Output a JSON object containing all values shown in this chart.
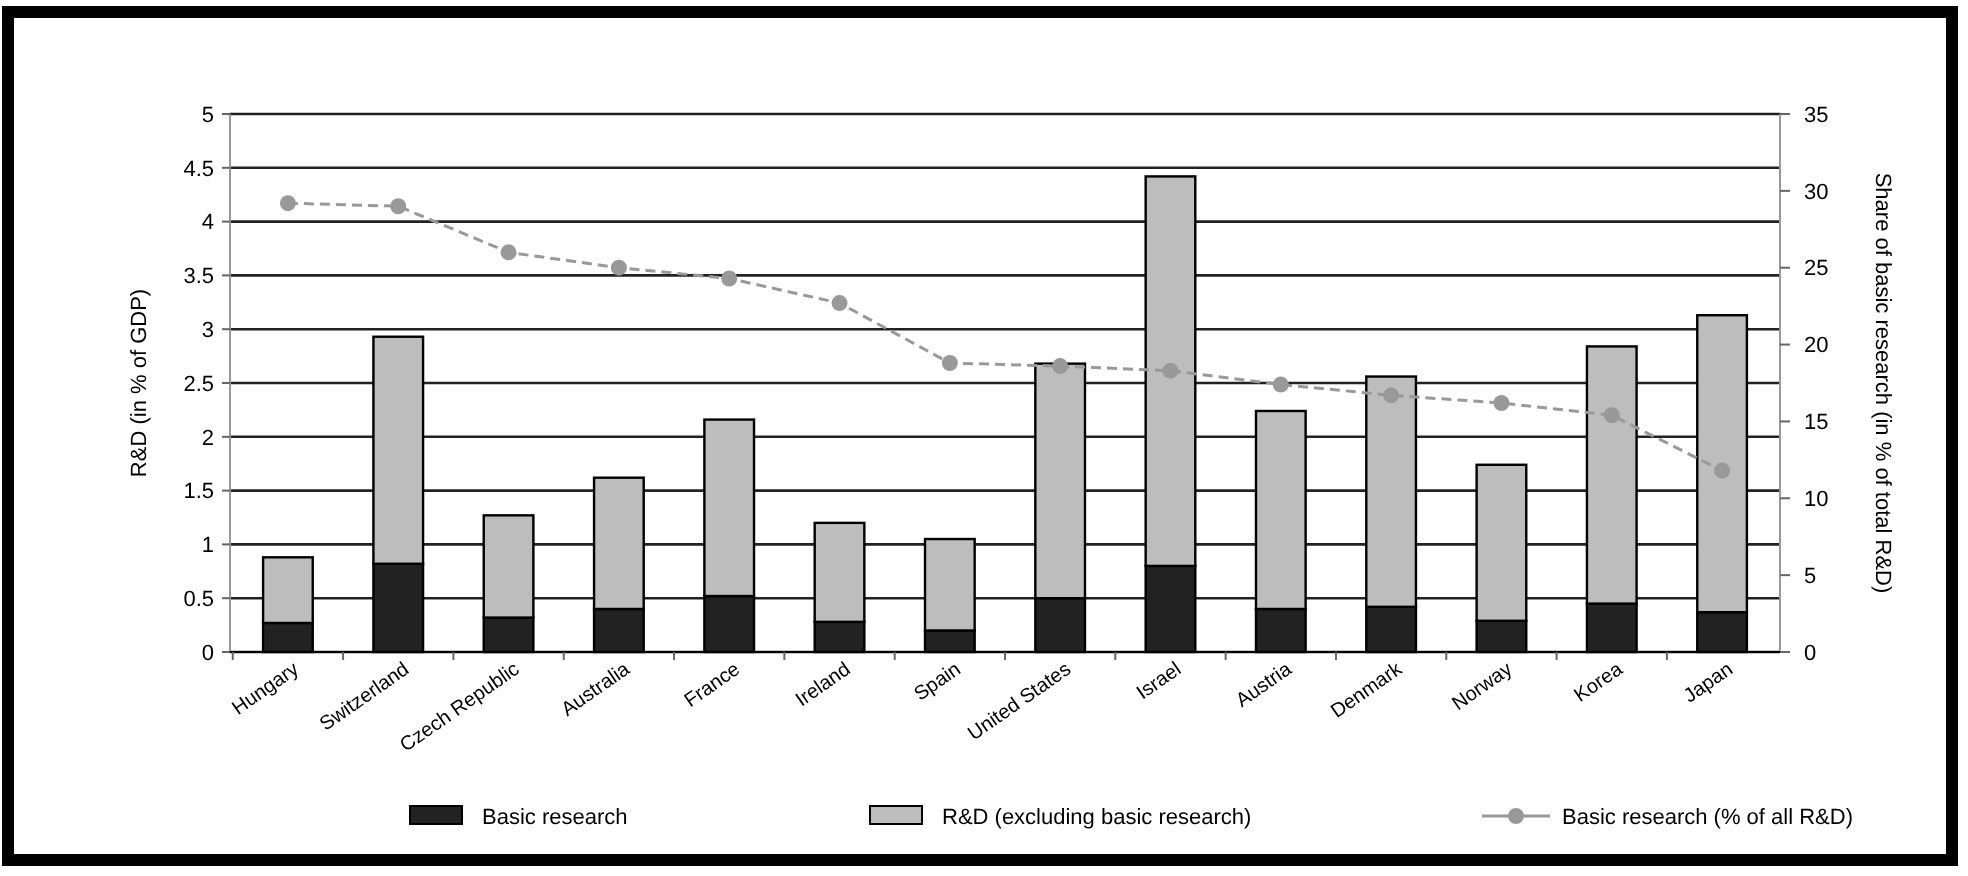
{
  "chart_data": {
    "type": "bar",
    "stacked": true,
    "categories": [
      "Hungary",
      "Switzerland",
      "Czech Republic",
      "Australia",
      "France",
      "Ireland",
      "Spain",
      "United States",
      "Israel",
      "Austria",
      "Denmark",
      "Norway",
      "Korea",
      "Japan"
    ],
    "ylabel": "R&D (in % of GDP)",
    "y2label": "Share of basic research (in % of total R&D)",
    "ylim": [
      0,
      5
    ],
    "yticks": [
      0,
      0.5,
      1,
      1.5,
      2,
      2.5,
      3,
      3.5,
      4,
      4.5,
      5
    ],
    "y2lim": [
      0,
      35
    ],
    "y2ticks": [
      0,
      5,
      10,
      15,
      20,
      25,
      30,
      35
    ],
    "grid": "y",
    "legend": "bottom",
    "series": [
      {
        "name": "Basic research",
        "color": "#222222",
        "values": [
          0.27,
          0.82,
          0.32,
          0.4,
          0.52,
          0.28,
          0.2,
          0.5,
          0.8,
          0.4,
          0.42,
          0.29,
          0.45,
          0.37
        ]
      },
      {
        "name": "R&D (excluding basic research)",
        "color": "#bdbdbd",
        "values": [
          0.61,
          2.11,
          0.95,
          1.22,
          1.64,
          0.92,
          0.85,
          2.18,
          3.62,
          1.84,
          2.14,
          1.45,
          2.39,
          2.76
        ]
      },
      {
        "name": "Basic research (% of all R&D)",
        "type": "line",
        "axis": "y2",
        "color": "#999999",
        "marker": "circle",
        "line_style": "dashed",
        "values": [
          29.2,
          29.0,
          26.0,
          25.0,
          24.3,
          22.7,
          18.8,
          18.6,
          18.3,
          17.4,
          16.7,
          16.2,
          15.4,
          11.8
        ]
      }
    ]
  }
}
